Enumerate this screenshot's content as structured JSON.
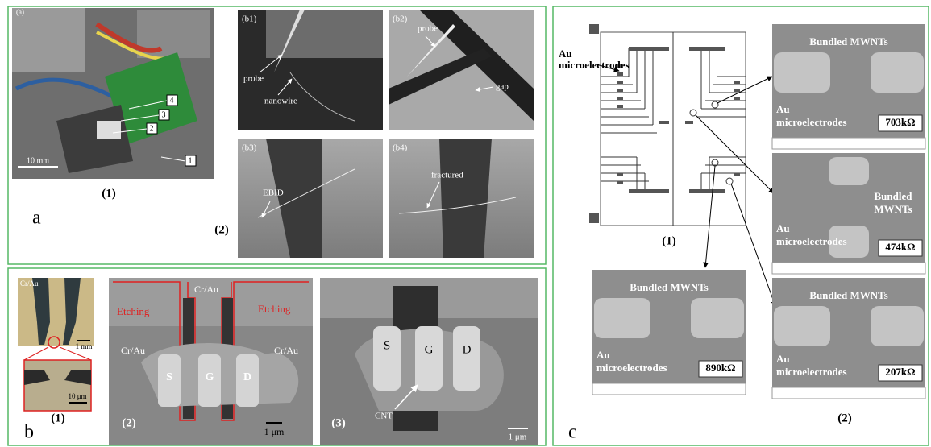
{
  "panel_a": {
    "photo": {
      "tag": "(a)",
      "markers": [
        "4",
        "3",
        "2",
        "1"
      ],
      "scale": "10 mm"
    },
    "photo_caption": "(1)",
    "letter": "a",
    "sem": [
      {
        "tag": "(b1)",
        "labels": [
          "probe",
          "nanowire"
        ]
      },
      {
        "tag": "(b2)",
        "labels": [
          "probe",
          "gap"
        ]
      },
      {
        "tag": "(b3)",
        "labels": [
          "EBID"
        ]
      },
      {
        "tag": "(b4)",
        "labels": [
          "fractured"
        ]
      }
    ],
    "sem_caption": "(2)"
  },
  "panel_b": {
    "optical": {
      "label": "Cr/Au",
      "scale_top": "1 mm",
      "scale_bottom": "10 μm"
    },
    "optical_caption": "(1)",
    "letter": "b",
    "sem1": {
      "caption": "(2)",
      "labels": [
        "Etching",
        "Cr/Au",
        "Etching",
        "Cr/Au",
        "Cr/Au"
      ],
      "electrodes": [
        "S",
        "G",
        "D"
      ],
      "scale": "1 μm"
    },
    "sem2": {
      "caption": "(3)",
      "electrodes": [
        "S",
        "G",
        "D"
      ],
      "label": "CNT",
      "scale": "1 μm"
    }
  },
  "panel_c": {
    "schematic": {
      "label_lines": [
        "Au",
        "microelectrodes"
      ],
      "caption": "(1)"
    },
    "sem": [
      {
        "title_lines": [
          "Bundled MWNTs"
        ],
        "electrode_lines": [
          "Au",
          "microelectrodes"
        ],
        "resistance": "703kΩ"
      },
      {
        "title_lines": [
          "Bundled",
          "MWNTs"
        ],
        "electrode_lines": [
          "Au",
          "microelectrodes"
        ],
        "resistance": "474kΩ"
      },
      {
        "title_lines": [
          "Bundled MWNTs"
        ],
        "electrode_lines": [
          "Au",
          "microelectrodes"
        ],
        "resistance": "890kΩ"
      },
      {
        "title_lines": [
          "Bundled MWNTs"
        ],
        "electrode_lines": [
          "Au",
          "microelectrodes"
        ],
        "resistance": "207kΩ"
      }
    ],
    "sem_caption": "(2)",
    "letter": "c"
  }
}
